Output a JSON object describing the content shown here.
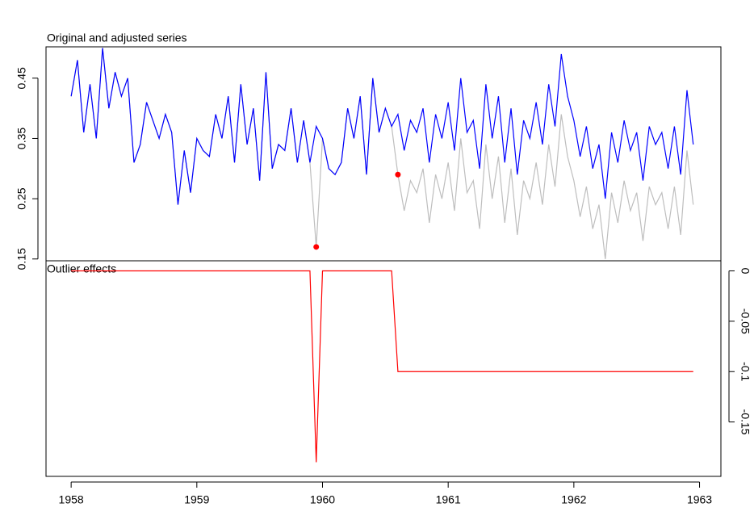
{
  "chart_data": [
    {
      "type": "line",
      "title": "Original and adjusted series",
      "x": [
        1958,
        1958.05,
        1958.1,
        1958.15,
        1958.2,
        1958.25,
        1958.3,
        1958.35,
        1958.4,
        1958.45,
        1958.5,
        1958.55,
        1958.6,
        1958.65,
        1958.7,
        1958.75,
        1958.8,
        1958.85,
        1958.9,
        1958.95,
        1959,
        1959.05,
        1959.1,
        1959.15,
        1959.2,
        1959.25,
        1959.3,
        1959.35,
        1959.4,
        1959.45,
        1959.5,
        1959.55,
        1959.6,
        1959.65,
        1959.7,
        1959.75,
        1959.8,
        1959.85,
        1959.9,
        1959.95,
        1960,
        1960.05,
        1960.1,
        1960.15,
        1960.2,
        1960.25,
        1960.3,
        1960.35,
        1960.4,
        1960.45,
        1960.5,
        1960.55,
        1960.6,
        1960.65,
        1960.7,
        1960.75,
        1960.8,
        1960.85,
        1960.9,
        1960.95,
        1961,
        1961.05,
        1961.1,
        1961.15,
        1961.2,
        1961.25,
        1961.3,
        1961.35,
        1961.4,
        1961.45,
        1961.5,
        1961.55,
        1961.6,
        1961.65,
        1961.7,
        1961.75,
        1961.8,
        1961.85,
        1961.9,
        1961.95,
        1962,
        1962.05,
        1962.1,
        1962.15,
        1962.2,
        1962.25,
        1962.3,
        1962.35,
        1962.4,
        1962.45,
        1962.5,
        1962.55,
        1962.6,
        1962.65,
        1962.7,
        1962.75,
        1962.8,
        1962.85,
        1962.9,
        1962.95
      ],
      "series": [
        {
          "color": "#bebebe",
          "values": [
            0.42,
            0.48,
            0.36,
            0.44,
            0.35,
            0.5,
            0.4,
            0.46,
            0.42,
            0.45,
            0.31,
            0.34,
            0.41,
            0.38,
            0.35,
            0.39,
            0.36,
            0.24,
            0.33,
            0.26,
            0.35,
            0.33,
            0.32,
            0.39,
            0.35,
            0.42,
            0.31,
            0.44,
            0.34,
            0.4,
            0.28,
            0.46,
            0.3,
            0.34,
            0.33,
            0.4,
            0.31,
            0.38,
            0.31,
            0.17,
            0.35,
            0.3,
            0.29,
            0.31,
            0.4,
            0.35,
            0.42,
            0.29,
            0.45,
            0.36,
            0.4,
            0.37,
            0.29,
            0.23,
            0.28,
            0.26,
            0.3,
            0.21,
            0.29,
            0.25,
            0.31,
            0.23,
            0.35,
            0.26,
            0.28,
            0.2,
            0.34,
            0.25,
            0.32,
            0.21,
            0.3,
            0.19,
            0.28,
            0.25,
            0.31,
            0.24,
            0.34,
            0.27,
            0.39,
            0.32,
            0.28,
            0.22,
            0.27,
            0.2,
            0.24,
            0.15,
            0.26,
            0.21,
            0.28,
            0.23,
            0.26,
            0.18,
            0.27,
            0.24,
            0.26,
            0.2,
            0.27,
            0.19,
            0.33,
            0.24
          ]
        },
        {
          "color": "#0000ff",
          "values": [
            0.42,
            0.48,
            0.36,
            0.44,
            0.35,
            0.5,
            0.4,
            0.46,
            0.42,
            0.45,
            0.31,
            0.34,
            0.41,
            0.38,
            0.35,
            0.39,
            0.36,
            0.24,
            0.33,
            0.26,
            0.35,
            0.33,
            0.32,
            0.39,
            0.35,
            0.42,
            0.31,
            0.44,
            0.34,
            0.4,
            0.28,
            0.46,
            0.3,
            0.34,
            0.33,
            0.4,
            0.31,
            0.38,
            0.31,
            0.37,
            0.35,
            0.3,
            0.29,
            0.31,
            0.4,
            0.35,
            0.42,
            0.29,
            0.45,
            0.36,
            0.4,
            0.37,
            0.39,
            0.33,
            0.38,
            0.36,
            0.4,
            0.31,
            0.39,
            0.35,
            0.41,
            0.33,
            0.45,
            0.36,
            0.38,
            0.3,
            0.44,
            0.35,
            0.42,
            0.31,
            0.4,
            0.29,
            0.38,
            0.35,
            0.41,
            0.34,
            0.44,
            0.37,
            0.49,
            0.42,
            0.38,
            0.32,
            0.37,
            0.3,
            0.34,
            0.25,
            0.36,
            0.31,
            0.38,
            0.33,
            0.36,
            0.28,
            0.37,
            0.34,
            0.36,
            0.3,
            0.37,
            0.29,
            0.43,
            0.34
          ]
        }
      ],
      "points": {
        "color": "#ff0000",
        "x": [
          1959.95,
          1960.6
        ],
        "values": [
          0.17,
          0.29
        ]
      },
      "xlim": [
        1957.8,
        1963.17
      ],
      "ylim": [
        0.147,
        0.502
      ],
      "yticks": [
        0.15,
        0.25,
        0.35,
        0.45
      ]
    },
    {
      "type": "line",
      "title": "Outlier effects",
      "series": [
        {
          "color": "#ff0000",
          "values": [
            0,
            0,
            0,
            0,
            0,
            0,
            0,
            0,
            0,
            0,
            0,
            0,
            0,
            0,
            0,
            0,
            0,
            0,
            0,
            0,
            0,
            0,
            0,
            0,
            0,
            0,
            0,
            0,
            0,
            0,
            0,
            0,
            0,
            0,
            0,
            0,
            0,
            0,
            0,
            -0.19,
            0,
            0,
            0,
            0,
            0,
            0,
            0,
            0,
            0,
            0,
            0,
            0,
            -0.1,
            -0.1,
            -0.1,
            -0.1,
            -0.1,
            -0.1,
            -0.1,
            -0.1,
            -0.1,
            -0.1,
            -0.1,
            -0.1,
            -0.1,
            -0.1,
            -0.1,
            -0.1,
            -0.1,
            -0.1,
            -0.1,
            -0.1,
            -0.1,
            -0.1,
            -0.1,
            -0.1,
            -0.1,
            -0.1,
            -0.1,
            -0.1,
            -0.1,
            -0.1,
            -0.1,
            -0.1,
            -0.1,
            -0.1,
            -0.1,
            -0.1,
            -0.1,
            -0.1,
            -0.1,
            -0.1,
            -0.1,
            -0.1,
            -0.1,
            -0.1,
            -0.1,
            -0.1,
            -0.1,
            -0.1
          ]
        }
      ],
      "xlim": [
        1957.8,
        1963.17
      ],
      "xticks": [
        1958,
        1959,
        1960,
        1961,
        1962,
        1963
      ],
      "ylim": [
        -0.204,
        0.01
      ],
      "yticks": [
        0,
        -0.05,
        -0.1,
        -0.15
      ]
    }
  ]
}
